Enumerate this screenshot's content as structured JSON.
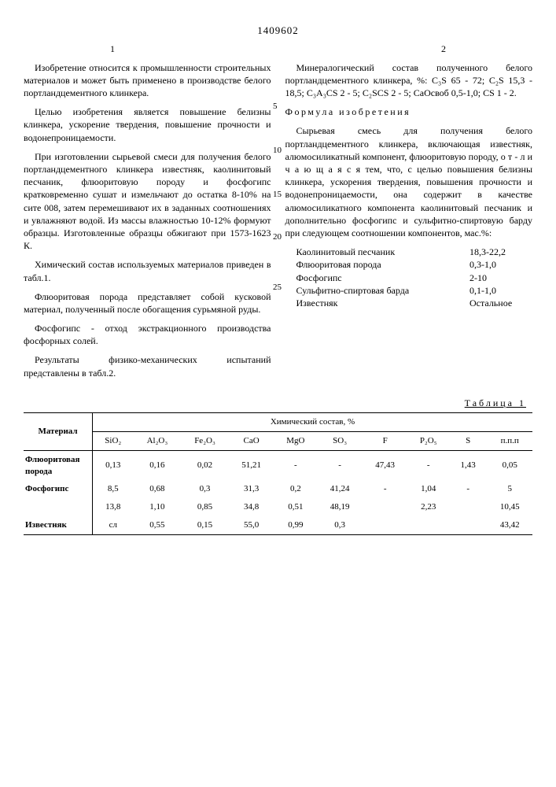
{
  "doc_number": "1409602",
  "col_left_num": "1",
  "col_right_num": "2",
  "left_col": {
    "p1": "Изобретение относится к промышленности строительных материалов и может быть применено в производстве белого портландцементного клинкера.",
    "p2": "Целью изобретения является повышение белизны клинкера, ускорение твердения, повышение прочности и водонепроницаемости.",
    "p3": "При изготовлении сырьевой смеси для получения белого портландцементного клинкера известняк, каолинитовый песчаник, флюоритовую породу и фосфогипс кратковременно сушат и измельчают до остатка 8-10% на сите 008, затем перемешивают их в заданных соотношениях и увлажняют водой. Из массы влажностью 10-12% формуют образцы. Изготовленные образцы обжигают при 1573-1623 К.",
    "p4": "Химический состав используемых материалов приведен в табл.1.",
    "p5": "Флюоритовая порода представляет собой кусковой материал, полученный после обогащения сурьмяной руды.",
    "p6": "Фосфогипс - отход экстракционного производства фосфорных солей.",
    "p7": "Результаты физико-механических испытаний представлены в табл.2."
  },
  "right_col": {
    "p1": "Минералогический состав полученного белого портландцементного клинкера, %: C₃S 65 - 72; C₂S 15,3 - 18,5; C₃A₃CS 2 - 5; C₂SCS 2 - 5; CaOсвоб 0,5-1,0; CS 1 - 2.",
    "formula_title": "Формула изобретения",
    "p2": "Сырьевая смесь для получения белого портландцементного клинкера, включающая известняк, алюмосиликатный компонент, флюоритовую породу, о т - л и ч а ю щ а я с я тем, что, с целью повышения белизны клинкера, ускорения твердения, повышения прочности и водонепроницаемости, она содержит в качестве алюмосиликатного компонента каолинитовый песчаник и дополнительно фосфогипс и сульфитно-спиртовую барду при следующем соотношении компонентов, мас.%:",
    "components": [
      {
        "label": "Каолинитовый песчаник",
        "value": "18,3-22,2"
      },
      {
        "label": "Флюоритовая порода",
        "value": "0,3-1,0"
      },
      {
        "label": "Фосфогипс",
        "value": "2-10"
      },
      {
        "label": "Сульфитно-спиртовая барда",
        "value": "0,1-1,0"
      },
      {
        "label": "Известняк",
        "value": "Остальное"
      }
    ]
  },
  "line_numbers": [
    "5",
    "10",
    "15",
    "20",
    "25"
  ],
  "line_number_tops": [
    50,
    106,
    162,
    216,
    280
  ],
  "table": {
    "caption": "Таблица 1",
    "head_material": "Материал",
    "head_group": "Химический состав, %",
    "columns": [
      "SiO₂",
      "Al₂O₃",
      "Fe₂O₃",
      "CaO",
      "MgO",
      "SO₃",
      "F",
      "P₂O₅",
      "S",
      "п.п.п"
    ],
    "rows": [
      {
        "mat": "Флюоритовая порода",
        "cells": [
          "0,13",
          "0,16",
          "0,02",
          "51,21",
          "-",
          "-",
          "47,43",
          "-",
          "1,43",
          "0,05"
        ]
      },
      {
        "mat": "Фосфогипс",
        "cells": [
          "8,5",
          "0,68",
          "0,3",
          "31,3",
          "0,2",
          "41,24",
          "-",
          "1,04",
          "-",
          "5"
        ]
      },
      {
        "mat": "",
        "cells": [
          "13,8",
          "1,10",
          "0,85",
          "34,8",
          "0,51",
          "48,19",
          "",
          "2,23",
          "",
          "10,45"
        ]
      },
      {
        "mat": "Известняк",
        "cells": [
          "сл",
          "0,55",
          "0,15",
          "55,0",
          "0,99",
          "0,3",
          "",
          "",
          "",
          "43,42"
        ]
      }
    ]
  }
}
